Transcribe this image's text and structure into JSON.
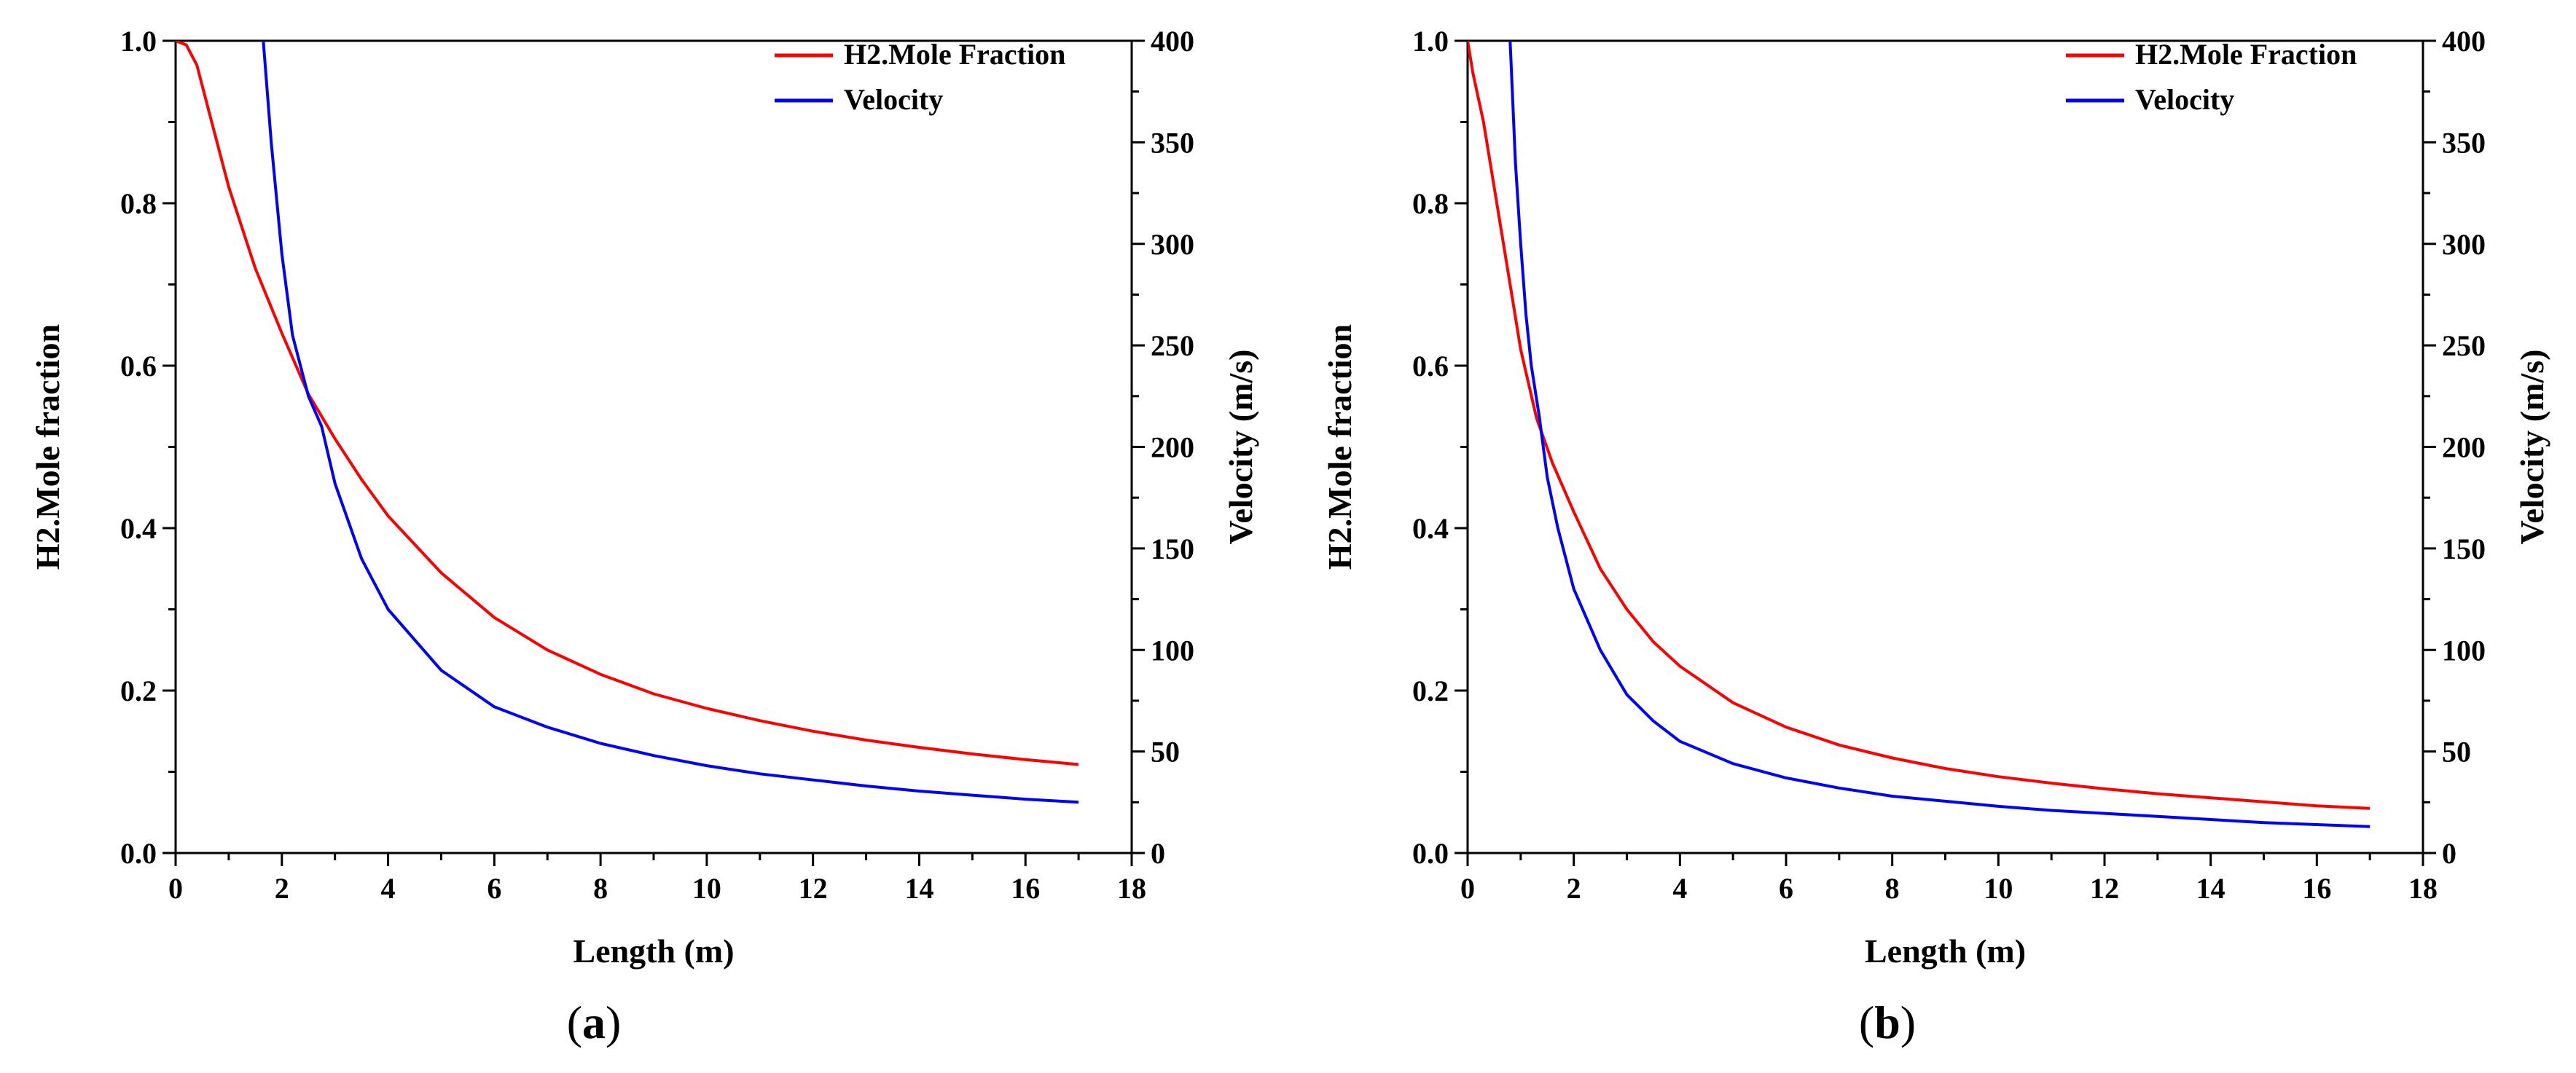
{
  "chart_data": [
    {
      "type": "line",
      "panel_label": "a",
      "xlabel": "Length (m)",
      "ylabel_left": "H2.Mole fraction",
      "ylabel_right": "Velocity (m/s)",
      "xlim": [
        0,
        18
      ],
      "ylim_left": [
        0,
        1.0
      ],
      "ylim_right": [
        0,
        400
      ],
      "x_ticks": [
        "0",
        "2",
        "4",
        "6",
        "8",
        "10",
        "12",
        "14",
        "16",
        "18"
      ],
      "y_left_ticks": [
        "0.0",
        "0.2",
        "0.4",
        "0.6",
        "0.8",
        "1.0"
      ],
      "y_right_ticks": [
        "0",
        "50",
        "100",
        "150",
        "200",
        "250",
        "300",
        "350",
        "400"
      ],
      "legend_position": "top-right",
      "colors": {
        "h2": "#ff0000",
        "velocity": "#0000ff"
      },
      "series": [
        {
          "name": "H2.Mole Fraction",
          "axis": "left",
          "x": [
            0,
            0.2,
            0.4,
            0.6,
            1,
            1.5,
            2,
            2.5,
            3,
            3.5,
            4,
            5,
            6,
            7,
            8,
            9,
            10,
            11,
            12,
            13,
            14,
            15,
            16,
            17
          ],
          "y": [
            1.0,
            0.995,
            0.97,
            0.92,
            0.82,
            0.72,
            0.64,
            0.565,
            0.51,
            0.46,
            0.415,
            0.345,
            0.29,
            0.25,
            0.22,
            0.196,
            0.178,
            0.163,
            0.15,
            0.139,
            0.13,
            0.122,
            0.115,
            0.109
          ]
        },
        {
          "name": "Velocity",
          "axis": "right",
          "x": [
            1.65,
            1.8,
            2.0,
            2.2,
            2.5,
            2.75,
            3,
            3.5,
            4,
            5,
            6,
            7,
            8,
            9,
            10,
            11,
            12,
            13,
            14,
            15,
            16,
            17
          ],
          "y": [
            400,
            350,
            295,
            255,
            225,
            210,
            182,
            145,
            120,
            90,
            72,
            62,
            54,
            48,
            43,
            39,
            36,
            33,
            30.5,
            28.5,
            26.5,
            25
          ]
        }
      ]
    },
    {
      "type": "line",
      "panel_label": "b",
      "xlabel": "Length (m)",
      "ylabel_left": "H2.Mole fraction",
      "ylabel_right": "Velocity (m/s)",
      "xlim": [
        0,
        18
      ],
      "ylim_left": [
        0,
        1.0
      ],
      "ylim_right": [
        0,
        400
      ],
      "x_ticks": [
        "0",
        "2",
        "4",
        "6",
        "8",
        "10",
        "12",
        "14",
        "16",
        "18"
      ],
      "y_left_ticks": [
        "0.0",
        "0.2",
        "0.4",
        "0.6",
        "0.8",
        "1.0"
      ],
      "y_right_ticks": [
        "0",
        "50",
        "100",
        "150",
        "200",
        "250",
        "300",
        "350",
        "400"
      ],
      "legend_position": "top-right",
      "colors": {
        "h2": "#ff0000",
        "velocity": "#0000ff"
      },
      "series": [
        {
          "name": "H2.Mole Fraction",
          "axis": "left",
          "x": [
            0,
            0.1,
            0.3,
            0.5,
            0.8,
            1.0,
            1.3,
            1.6,
            2,
            2.5,
            3,
            3.5,
            4,
            5,
            6,
            7,
            8,
            9,
            10,
            11,
            12,
            13,
            14,
            15,
            16,
            17
          ],
          "y": [
            1.0,
            0.96,
            0.9,
            0.82,
            0.7,
            0.62,
            0.535,
            0.48,
            0.42,
            0.35,
            0.3,
            0.26,
            0.23,
            0.185,
            0.155,
            0.133,
            0.117,
            0.104,
            0.094,
            0.086,
            0.079,
            0.073,
            0.068,
            0.063,
            0.058,
            0.055
          ]
        },
        {
          "name": "Velocity",
          "axis": "right",
          "x": [
            0.8,
            0.9,
            1.0,
            1.1,
            1.2,
            1.35,
            1.5,
            1.7,
            2,
            2.5,
            3,
            3.5,
            4,
            5,
            6,
            7,
            8,
            9,
            10,
            11,
            12,
            13,
            14,
            15,
            16,
            17
          ],
          "y": [
            400,
            340,
            300,
            265,
            240,
            215,
            185,
            160,
            130,
            100,
            78,
            65,
            55,
            44,
            37,
            32,
            28,
            25.5,
            23,
            21,
            19.5,
            18,
            16.5,
            15,
            14,
            13
          ]
        }
      ]
    }
  ]
}
